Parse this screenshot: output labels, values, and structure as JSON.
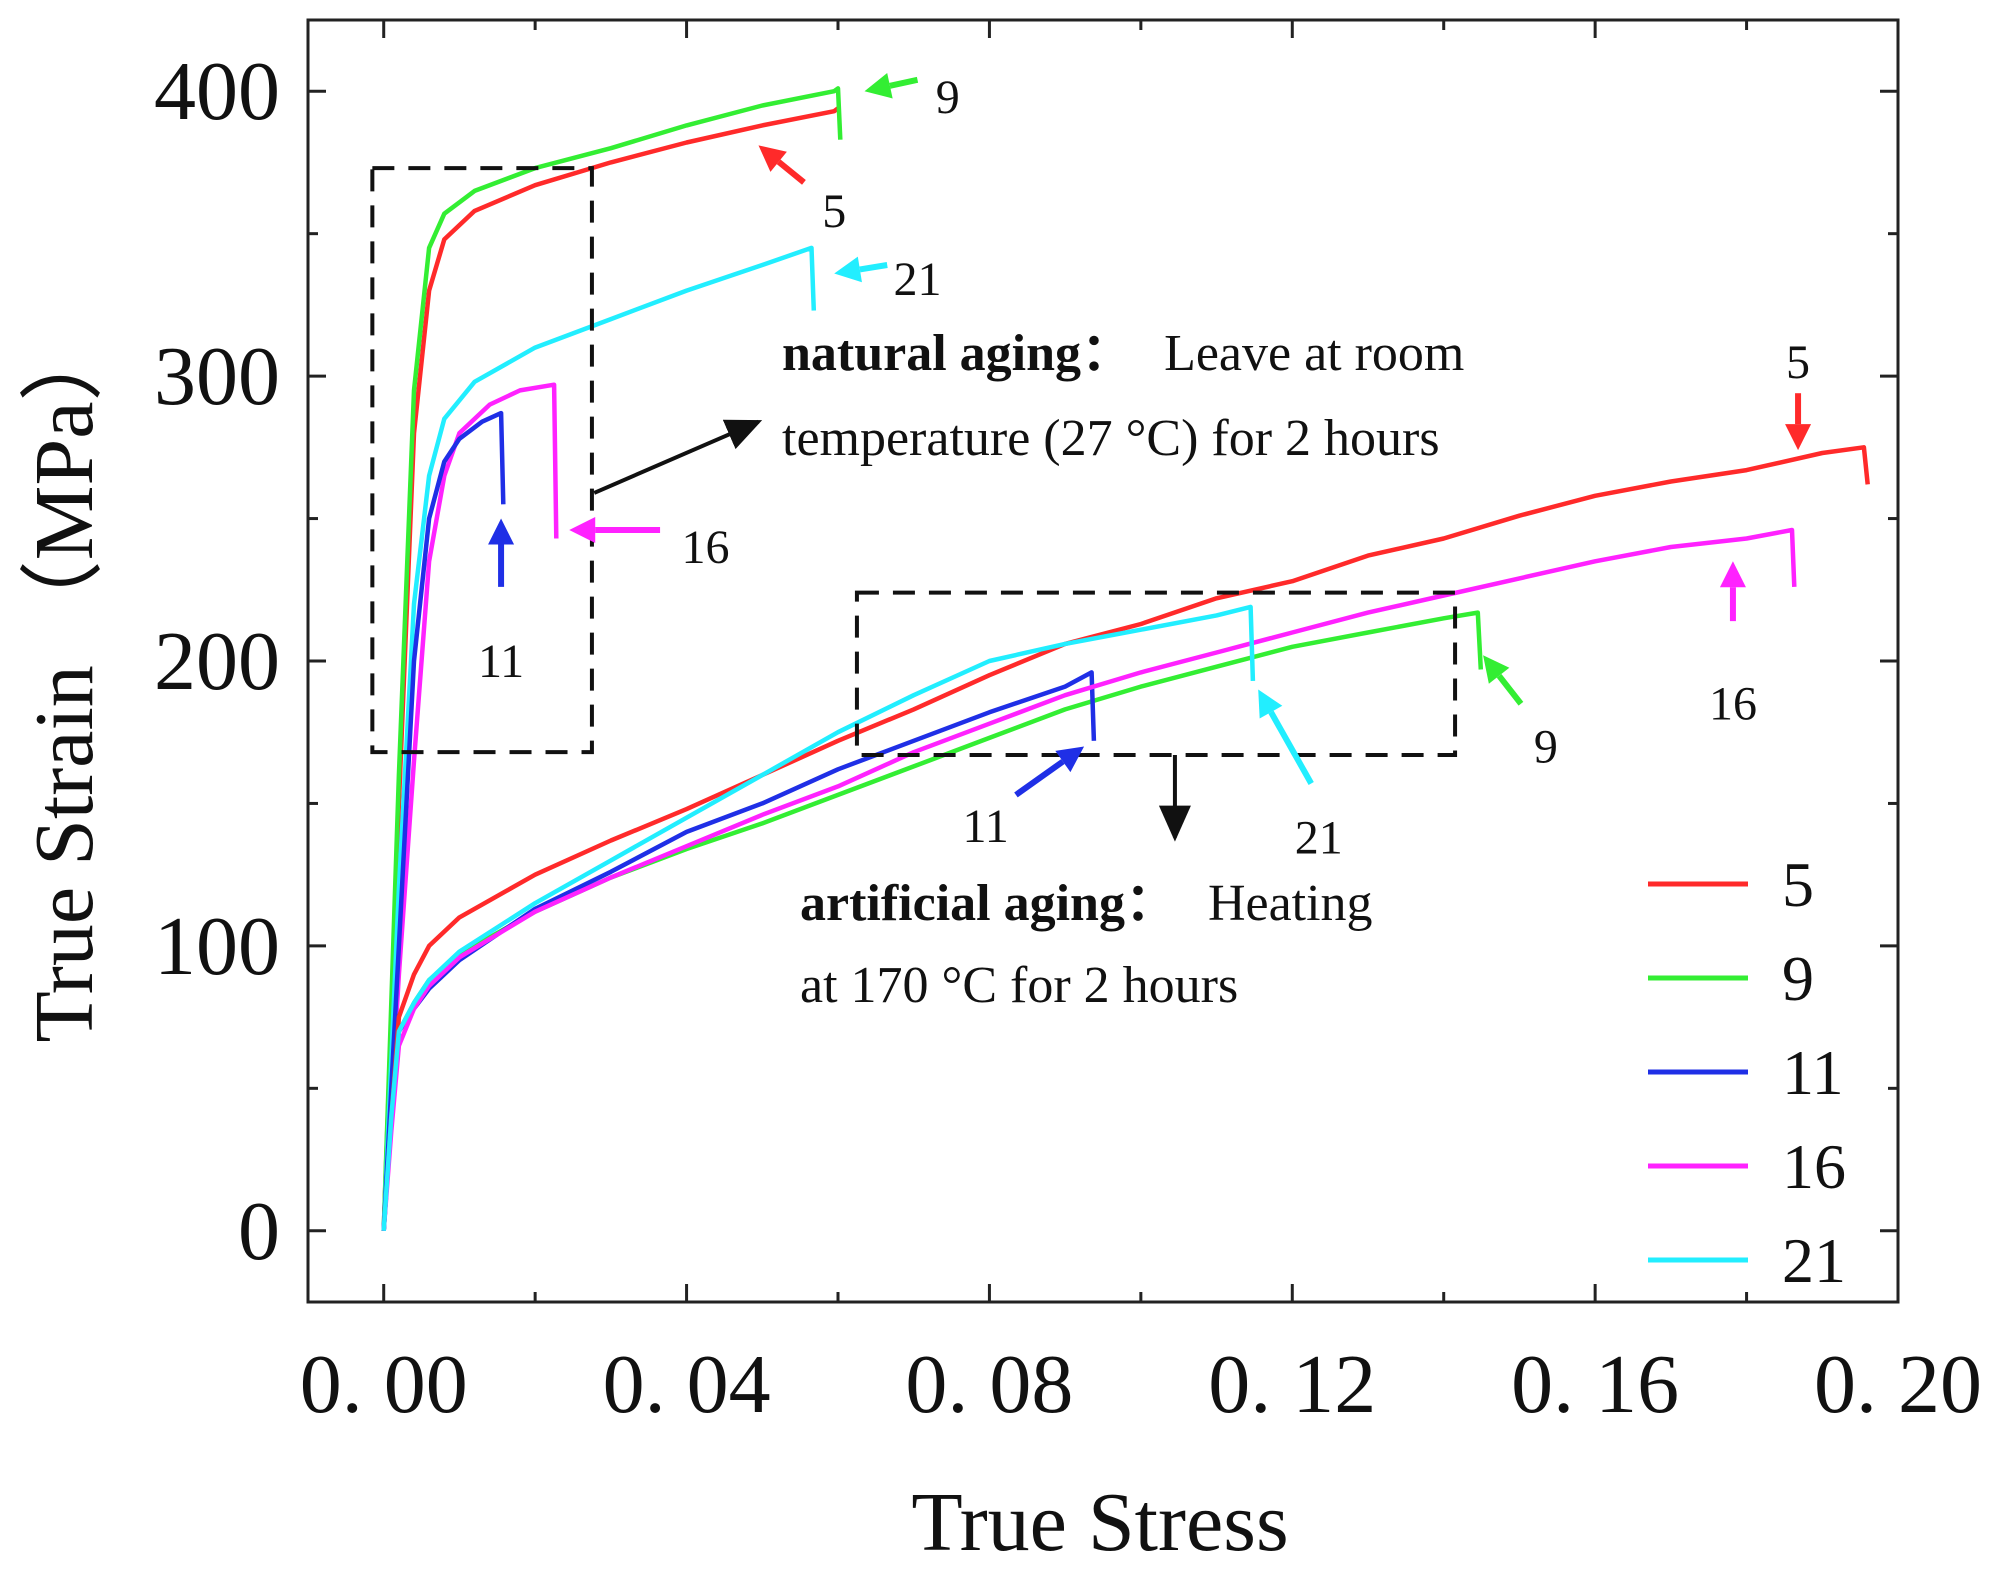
{
  "chart_data": {
    "type": "line",
    "xlabel": "True Stress",
    "ylabel": "True Strain （MPa）",
    "xlim": [
      -0.01,
      0.2
    ],
    "ylim": [
      -25,
      425
    ],
    "xticks": [
      0.0,
      0.04,
      0.08,
      0.12,
      0.16,
      0.2
    ],
    "xtick_labels": [
      "0. 00",
      "0. 04",
      "0. 08",
      "0. 12",
      "0. 16",
      "0. 20"
    ],
    "yticks": [
      0,
      100,
      200,
      300,
      400
    ],
    "ytick_labels": [
      "0",
      "100",
      "200",
      "300",
      "400"
    ],
    "legend": {
      "position": "bottom-right",
      "entries": [
        "5",
        "9",
        "11",
        "16",
        "21"
      ]
    },
    "colors": {
      "5": "#ff2a2a",
      "9": "#33ee33",
      "11": "#1f2fe6",
      "16": "#ff22ff",
      "21": "#22eeff",
      "box": "#111111"
    },
    "series": [
      {
        "name": "5",
        "group": "natural",
        "color": "#ff2a2a",
        "points": [
          [
            0,
            0
          ],
          [
            0.002,
            150
          ],
          [
            0.004,
            280
          ],
          [
            0.006,
            330
          ],
          [
            0.008,
            348
          ],
          [
            0.012,
            358
          ],
          [
            0.02,
            367
          ],
          [
            0.03,
            375
          ],
          [
            0.04,
            382
          ],
          [
            0.05,
            388
          ],
          [
            0.0595,
            393
          ],
          [
            0.06,
            394
          ]
        ]
      },
      {
        "name": "9",
        "group": "natural",
        "color": "#33ee33",
        "points": [
          [
            0,
            0
          ],
          [
            0.002,
            160
          ],
          [
            0.004,
            295
          ],
          [
            0.006,
            345
          ],
          [
            0.008,
            357
          ],
          [
            0.012,
            365
          ],
          [
            0.02,
            373
          ],
          [
            0.03,
            380
          ],
          [
            0.04,
            388
          ],
          [
            0.05,
            395
          ],
          [
            0.0595,
            400
          ],
          [
            0.06,
            401
          ],
          [
            0.0603,
            383
          ]
        ]
      },
      {
        "name": "21",
        "group": "natural",
        "color": "#22eeff",
        "points": [
          [
            0,
            0
          ],
          [
            0.002,
            120
          ],
          [
            0.004,
            220
          ],
          [
            0.006,
            265
          ],
          [
            0.008,
            285
          ],
          [
            0.012,
            298
          ],
          [
            0.02,
            310
          ],
          [
            0.03,
            320
          ],
          [
            0.04,
            330
          ],
          [
            0.05,
            339
          ],
          [
            0.0565,
            345
          ],
          [
            0.0568,
            323
          ]
        ]
      },
      {
        "name": "16",
        "group": "natural",
        "color": "#ff22ff",
        "points": [
          [
            0,
            0
          ],
          [
            0.002,
            90
          ],
          [
            0.004,
            165
          ],
          [
            0.006,
            235
          ],
          [
            0.008,
            265
          ],
          [
            0.01,
            280
          ],
          [
            0.014,
            290
          ],
          [
            0.018,
            295
          ],
          [
            0.0225,
            297
          ],
          [
            0.0228,
            243
          ]
        ]
      },
      {
        "name": "11",
        "group": "natural",
        "color": "#1f2fe6",
        "points": [
          [
            0,
            0
          ],
          [
            0.002,
            100
          ],
          [
            0.004,
            200
          ],
          [
            0.006,
            250
          ],
          [
            0.008,
            270
          ],
          [
            0.01,
            278
          ],
          [
            0.013,
            284
          ],
          [
            0.0155,
            287
          ],
          [
            0.0158,
            255
          ]
        ]
      },
      {
        "name": "5",
        "group": "artificial",
        "color": "#ff2a2a",
        "points": [
          [
            0,
            0
          ],
          [
            0.001,
            40
          ],
          [
            0.002,
            75
          ],
          [
            0.004,
            90
          ],
          [
            0.006,
            100
          ],
          [
            0.01,
            110
          ],
          [
            0.02,
            125
          ],
          [
            0.03,
            137
          ],
          [
            0.04,
            148
          ],
          [
            0.05,
            160
          ],
          [
            0.06,
            172
          ],
          [
            0.07,
            183
          ],
          [
            0.08,
            195
          ],
          [
            0.09,
            206
          ],
          [
            0.1,
            213
          ],
          [
            0.11,
            222
          ],
          [
            0.12,
            228
          ],
          [
            0.13,
            237
          ],
          [
            0.14,
            243
          ],
          [
            0.15,
            251
          ],
          [
            0.16,
            258
          ],
          [
            0.17,
            263
          ],
          [
            0.18,
            267
          ],
          [
            0.19,
            273
          ],
          [
            0.1955,
            275
          ],
          [
            0.196,
            262
          ]
        ]
      },
      {
        "name": "9",
        "group": "artificial",
        "color": "#33ee33",
        "points": [
          [
            0,
            0
          ],
          [
            0.001,
            40
          ],
          [
            0.002,
            70
          ],
          [
            0.004,
            80
          ],
          [
            0.006,
            88
          ],
          [
            0.01,
            97
          ],
          [
            0.02,
            112
          ],
          [
            0.03,
            124
          ],
          [
            0.04,
            134
          ],
          [
            0.05,
            143
          ],
          [
            0.06,
            153
          ],
          [
            0.07,
            163
          ],
          [
            0.08,
            173
          ],
          [
            0.09,
            183
          ],
          [
            0.1,
            191
          ],
          [
            0.11,
            198
          ],
          [
            0.12,
            205
          ],
          [
            0.13,
            210
          ],
          [
            0.14,
            215
          ],
          [
            0.1445,
            217
          ],
          [
            0.1449,
            197
          ]
        ]
      },
      {
        "name": "11",
        "group": "artificial",
        "color": "#1f2fe6",
        "points": [
          [
            0,
            0
          ],
          [
            0.001,
            40
          ],
          [
            0.002,
            70
          ],
          [
            0.004,
            78
          ],
          [
            0.006,
            85
          ],
          [
            0.01,
            95
          ],
          [
            0.02,
            113
          ],
          [
            0.03,
            126
          ],
          [
            0.04,
            140
          ],
          [
            0.05,
            150
          ],
          [
            0.06,
            162
          ],
          [
            0.07,
            172
          ],
          [
            0.08,
            182
          ],
          [
            0.09,
            191
          ],
          [
            0.0935,
            196
          ],
          [
            0.0938,
            172
          ]
        ]
      },
      {
        "name": "16",
        "group": "artificial",
        "color": "#ff22ff",
        "points": [
          [
            0,
            0
          ],
          [
            0.001,
            35
          ],
          [
            0.002,
            65
          ],
          [
            0.004,
            78
          ],
          [
            0.006,
            86
          ],
          [
            0.01,
            96
          ],
          [
            0.02,
            112
          ],
          [
            0.03,
            124
          ],
          [
            0.04,
            135
          ],
          [
            0.05,
            146
          ],
          [
            0.06,
            156
          ],
          [
            0.07,
            168
          ],
          [
            0.08,
            178
          ],
          [
            0.09,
            188
          ],
          [
            0.1,
            196
          ],
          [
            0.11,
            203
          ],
          [
            0.12,
            210
          ],
          [
            0.13,
            217
          ],
          [
            0.14,
            223
          ],
          [
            0.15,
            229
          ],
          [
            0.16,
            235
          ],
          [
            0.17,
            240
          ],
          [
            0.18,
            243
          ],
          [
            0.186,
            246
          ],
          [
            0.1863,
            226
          ]
        ]
      },
      {
        "name": "21",
        "group": "artificial",
        "color": "#22eeff",
        "points": [
          [
            0,
            0
          ],
          [
            0.001,
            40
          ],
          [
            0.002,
            70
          ],
          [
            0.004,
            80
          ],
          [
            0.006,
            88
          ],
          [
            0.01,
            98
          ],
          [
            0.02,
            115
          ],
          [
            0.03,
            130
          ],
          [
            0.04,
            145
          ],
          [
            0.05,
            160
          ],
          [
            0.06,
            175
          ],
          [
            0.07,
            188
          ],
          [
            0.08,
            200
          ],
          [
            0.09,
            206
          ],
          [
            0.1,
            211
          ],
          [
            0.11,
            216
          ],
          [
            0.1145,
            219
          ],
          [
            0.1148,
            193
          ]
        ]
      }
    ],
    "annotations": {
      "natural_aging": {
        "title": "natural aging：",
        "line1_rest": "Leave at room",
        "line2": "temperature (27 °C) for 2 hours",
        "box": {
          "x": [
            -0.0015,
            0.0275
          ],
          "y": [
            168,
            373
          ]
        }
      },
      "artificial_aging": {
        "title": "artificial aging：",
        "line1_rest": "Heating",
        "line2": "at 170 °C for 2 hours",
        "box": {
          "x": [
            0.0625,
            0.1415
          ],
          "y": [
            167,
            224
          ]
        }
      }
    },
    "arrow_labels": [
      {
        "label": "9",
        "color": "#33ee33",
        "head": [
          0.0635,
          400
        ],
        "tail": [
          0.0705,
          404
        ],
        "text_at": [
          0.0745,
          398
        ]
      },
      {
        "label": "5",
        "color": "#ff2a2a",
        "head": [
          0.0495,
          381
        ],
        "tail": [
          0.0555,
          368
        ],
        "text_at": [
          0.0595,
          358
        ]
      },
      {
        "label": "21",
        "color": "#22eeff",
        "head": [
          0.0595,
          336
        ],
        "tail": [
          0.0665,
          339
        ],
        "text_at": [
          0.0705,
          334
        ]
      },
      {
        "label": "16",
        "color": "#ff22ff",
        "head": [
          0.0245,
          246
        ],
        "tail": [
          0.0365,
          246
        ],
        "text_at": [
          0.0425,
          240
        ]
      },
      {
        "label": "11",
        "color": "#1f2fe6",
        "head": [
          0.0155,
          250
        ],
        "tail": [
          0.0155,
          226
        ],
        "text_at": [
          0.0155,
          200
        ]
      },
      {
        "label": "5",
        "color": "#ff2a2a",
        "head": [
          0.1868,
          274
        ],
        "tail": [
          0.1868,
          294
        ],
        "text_at": [
          0.1868,
          305
        ]
      },
      {
        "label": "16",
        "color": "#ff22ff",
        "head": [
          0.1782,
          235
        ],
        "tail": [
          0.1782,
          214
        ],
        "text_at": [
          0.1782,
          185
        ]
      },
      {
        "label": "9",
        "color": "#33ee33",
        "head": [
          0.1452,
          202
        ],
        "tail": [
          0.1502,
          185
        ],
        "text_at": [
          0.1535,
          170
        ]
      },
      {
        "label": "11",
        "color": "#1f2fe6",
        "head": [
          0.0925,
          170
        ],
        "tail": [
          0.0835,
          153
        ],
        "text_at": [
          0.0795,
          142
        ]
      },
      {
        "label": "21",
        "color": "#22eeff",
        "head": [
          0.1155,
          190
        ],
        "tail": [
          0.1225,
          157
        ],
        "text_at": [
          0.1235,
          138
        ]
      }
    ],
    "pointer_arrows": [
      {
        "from": [
          0.0278,
          259
        ],
        "to": [
          0.0495,
          284
        ]
      },
      {
        "from": [
          0.1045,
          167
        ],
        "to": [
          0.1045,
          138
        ]
      }
    ]
  }
}
